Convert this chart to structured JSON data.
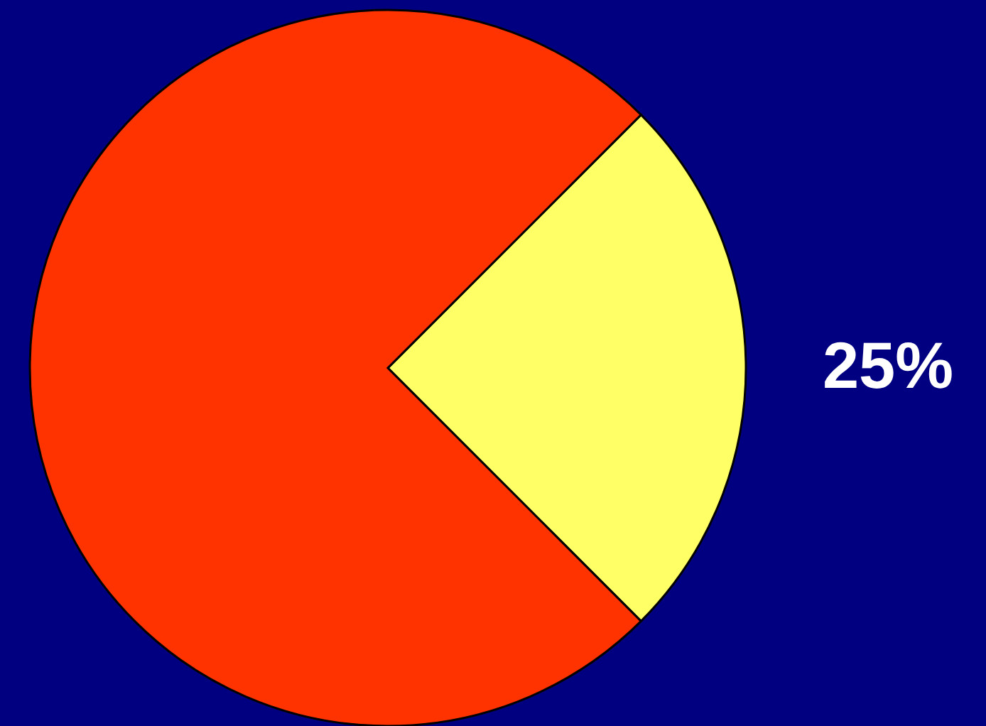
{
  "chart_data": {
    "type": "pie",
    "categories": [
      null,
      null
    ],
    "values": [
      25,
      75
    ],
    "colors": [
      "#ffff66",
      "#ff3300"
    ],
    "value_labels": [
      "25%",
      null
    ]
  }
}
